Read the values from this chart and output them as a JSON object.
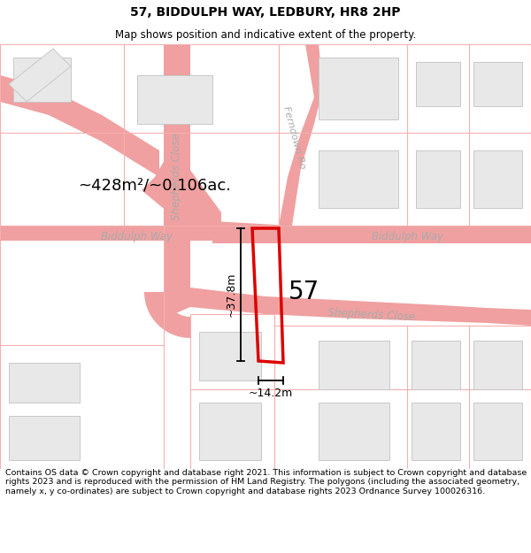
{
  "title": "57, BIDDULPH WAY, LEDBURY, HR8 2HP",
  "subtitle": "Map shows position and indicative extent of the property.",
  "footer": "Contains OS data © Crown copyright and database right 2021. This information is subject to Crown copyright and database rights 2023 and is reproduced with the permission of HM Land Registry. The polygons (including the associated geometry, namely x, y co-ordinates) are subject to Crown copyright and database rights 2023 Ordnance Survey 100026316.",
  "area_label": "~428m²/~0.106ac.",
  "plot_number": "57",
  "dim_height": "~37.8m",
  "dim_width": "~14.2m",
  "street_biddulph_left": "Biddulph Way",
  "street_biddulph_right": "Biddulph Way",
  "street_shepherds_vert": "Shepherds Close",
  "street_shepherds_horiz": "Shepherds Close",
  "street_ferndown": "Ferndown Ro",
  "bg_color": "#ffffff",
  "road_outline_color": "#f0a0a0",
  "road_fill_color": "#ffffff",
  "parcel_outline_color": "#f5b0b0",
  "building_fill": "#e8e8e8",
  "building_edge": "#c8c8c8",
  "plot_color": "#dd0000",
  "dim_color": "#000000",
  "label_color": "#aaaaaa",
  "street_label_color": "#aaaaaa"
}
